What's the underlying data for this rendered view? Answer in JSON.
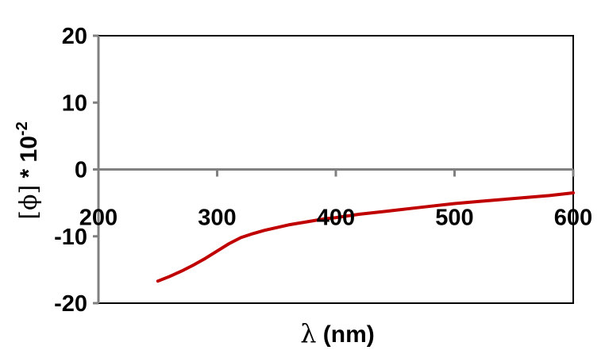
{
  "chart_data": {
    "type": "line",
    "title": "",
    "xlabel": "λ (nm)",
    "xlabel_symbol": "λ",
    "xlabel_unit": " (nm)",
    "ylabel": "[ϕ] * 10⁻²",
    "ylabel_bracket_open": "[",
    "ylabel_symbol": "ϕ",
    "ylabel_bracket_close": "]",
    "ylabel_mult": " * 10",
    "ylabel_exp": "-2",
    "xlim": [
      200,
      600
    ],
    "ylim": [
      -20,
      20
    ],
    "x_ticks": [
      200,
      300,
      400,
      500,
      600
    ],
    "y_ticks": [
      -20,
      -10,
      0,
      10,
      20
    ],
    "grid": false,
    "legend": "none",
    "series": [
      {
        "color": "#c00000",
        "x": [
          250,
          260,
          270,
          280,
          290,
          300,
          310,
          320,
          330,
          340,
          350,
          360,
          370,
          380,
          390,
          400,
          420,
          440,
          460,
          480,
          500,
          520,
          540,
          560,
          580,
          600
        ],
        "y": [
          -16.7,
          -16.0,
          -15.2,
          -14.3,
          -13.3,
          -12.2,
          -11.1,
          -10.2,
          -9.6,
          -9.1,
          -8.7,
          -8.3,
          -8.0,
          -7.7,
          -7.4,
          -7.2,
          -6.7,
          -6.3,
          -5.9,
          -5.5,
          -5.1,
          -4.8,
          -4.5,
          -4.2,
          -3.9,
          -3.5
        ]
      }
    ]
  },
  "colors": {
    "axis": "#808080",
    "frame": "#000000",
    "series": "#c00000"
  }
}
